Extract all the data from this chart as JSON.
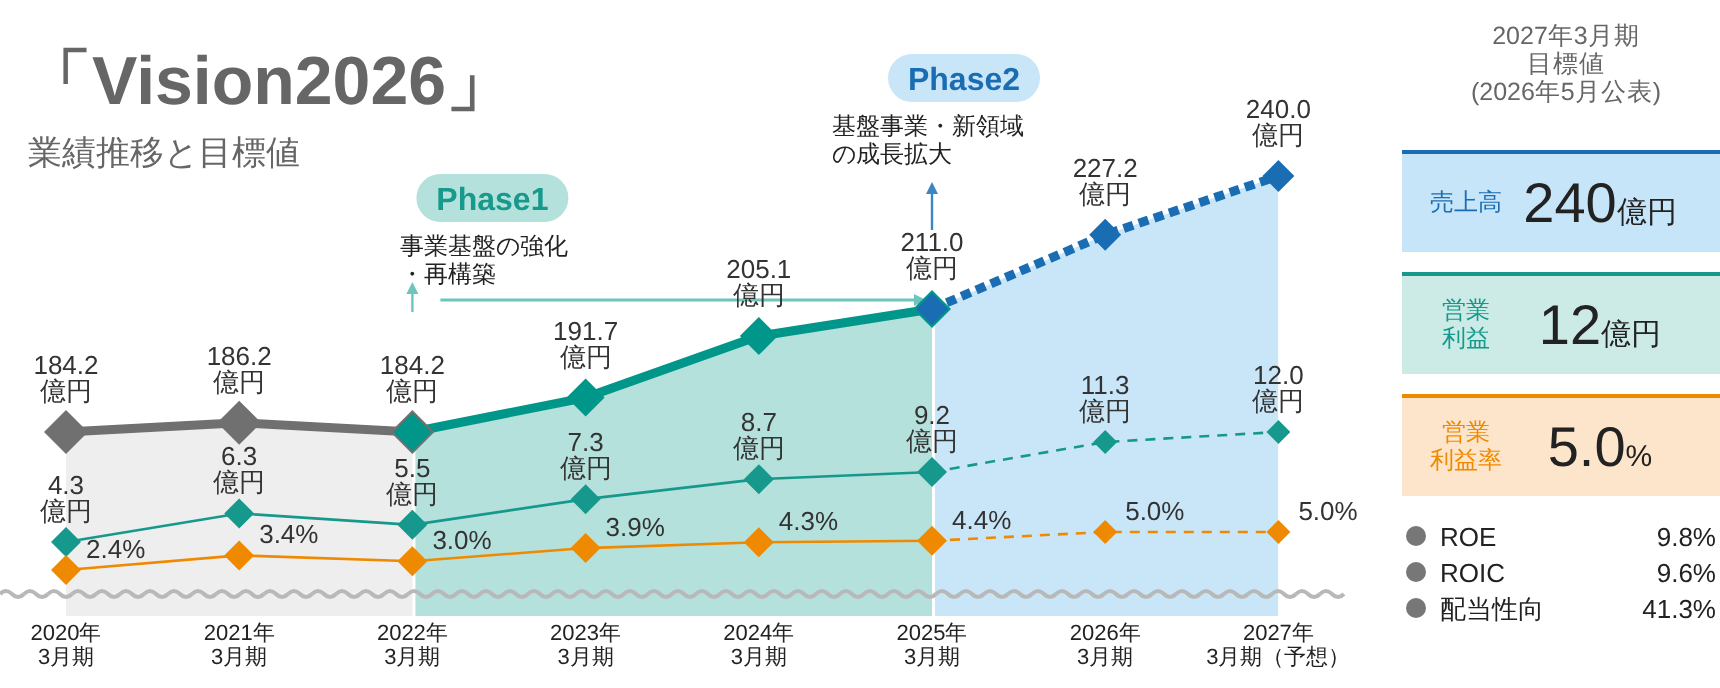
{
  "chart_data": [
    {
      "type": "line",
      "title": "「Vision2026」",
      "subtitle": "業績推移と目標値",
      "marker": "diamond",
      "tick_labels": false,
      "categories": [
        "2020年\n3月期",
        "2021年\n3月期",
        "2022年\n3月期",
        "2023年\n3月期",
        "2024年\n3月期",
        "2025年\n3月期",
        "2026年\n3月期",
        "2027年\n3月期（予想）"
      ],
      "series": [
        {
          "color": "#707070",
          "line_style": "solid",
          "values": [
            184.2,
            186.2,
            184.2,
            null,
            null,
            null,
            null,
            null
          ],
          "value_labels": [
            "184.2\n億円",
            "186.2\n億円",
            "184.2\n億円",
            null,
            null,
            null,
            null,
            null
          ]
        },
        {
          "color": "#00968a",
          "line_style": "solid",
          "values": [
            null,
            null,
            184.2,
            191.7,
            205.1,
            211.0,
            null,
            null
          ],
          "value_labels": [
            null,
            null,
            null,
            "191.7\n億円",
            "205.1\n億円",
            "211.0\n億円",
            null,
            null
          ]
        },
        {
          "color": "#1b6db3",
          "line_style": "dotted",
          "values": [
            null,
            null,
            null,
            null,
            null,
            211.0,
            227.2,
            240.0
          ],
          "value_labels": [
            null,
            null,
            null,
            null,
            null,
            null,
            "227.2\n億円",
            "240.0\n億円"
          ]
        }
      ],
      "bands": [
        {
          "axis": "x",
          "from": "2020年\n3月期",
          "to": "2022年\n3月期",
          "color": "#eeeeee"
        },
        {
          "axis": "x",
          "from": "2022年\n3月期",
          "to": "2025年\n3月期",
          "color": "#b5e1dc",
          "label": "Phase1"
        },
        {
          "axis": "x",
          "from": "2025年\n3月期",
          "to": "2027年\n3月期（予想）",
          "color": "#c8e6f8",
          "label": "Phase2"
        }
      ],
      "annotations": [
        "事業基盤の強化・再構築",
        "基盤事業・新領域の成長拡大"
      ]
    },
    {
      "type": "line",
      "marker": "diamond",
      "tick_labels": false,
      "categories": [
        "2020年\n3月期",
        "2021年\n3月期",
        "2022年\n3月期",
        "2023年\n3月期",
        "2024年\n3月期",
        "2025年\n3月期",
        "2026年\n3月期",
        "2027年\n3月期（予想）"
      ],
      "series": [
        {
          "color": "#16998c",
          "line_style": "solid",
          "values": [
            4.3,
            6.3,
            5.5,
            7.3,
            8.7,
            9.2,
            null,
            null
          ],
          "value_labels": [
            "4.3\n億円",
            "6.3\n億円",
            "5.5\n億円",
            "7.3\n億円",
            "8.7\n億円",
            "9.2\n億円",
            null,
            null
          ]
        },
        {
          "color": "#16998c",
          "line_style": "dashed",
          "values": [
            null,
            null,
            null,
            null,
            null,
            9.2,
            11.3,
            12.0
          ],
          "value_labels": [
            null,
            null,
            null,
            null,
            null,
            null,
            "11.3\n億円",
            "12.0\n億円"
          ]
        }
      ]
    },
    {
      "type": "line",
      "marker": "diamond",
      "tick_labels": "x",
      "categories": [
        "2020年\n3月期",
        "2021年\n3月期",
        "2022年\n3月期",
        "2023年\n3月期",
        "2024年\n3月期",
        "2025年\n3月期",
        "2026年\n3月期",
        "2027年\n3月期（予想）"
      ],
      "series": [
        {
          "color": "#ef8a00",
          "line_style": "solid",
          "values": [
            2.4,
            3.4,
            3.0,
            3.9,
            4.3,
            4.4,
            null,
            null
          ],
          "value_labels": [
            "2.4%",
            "3.4%",
            "3.0%",
            "3.9%",
            "4.3%",
            "4.4%",
            null,
            null
          ]
        },
        {
          "color": "#ef8a00",
          "line_style": "dashed",
          "values": [
            null,
            null,
            null,
            null,
            null,
            4.4,
            5.0,
            5.0
          ],
          "value_labels": [
            null,
            null,
            null,
            null,
            null,
            null,
            "5.0%",
            "5.0%"
          ]
        }
      ]
    },
    {
      "type": "other",
      "title": "2027年3月期目標値(2026年5月公表)",
      "colors": [
        "#c7e5f8",
        "#cdebe6",
        "#fde5cb"
      ],
      "annotations": [
        "売上高",
        "240億円",
        "営業利益",
        "12億円",
        "営業利益率",
        "5.0%",
        "ROE",
        "9.8%",
        "ROIC",
        "9.6%",
        "配当性向",
        "41.3%"
      ]
    }
  ]
}
